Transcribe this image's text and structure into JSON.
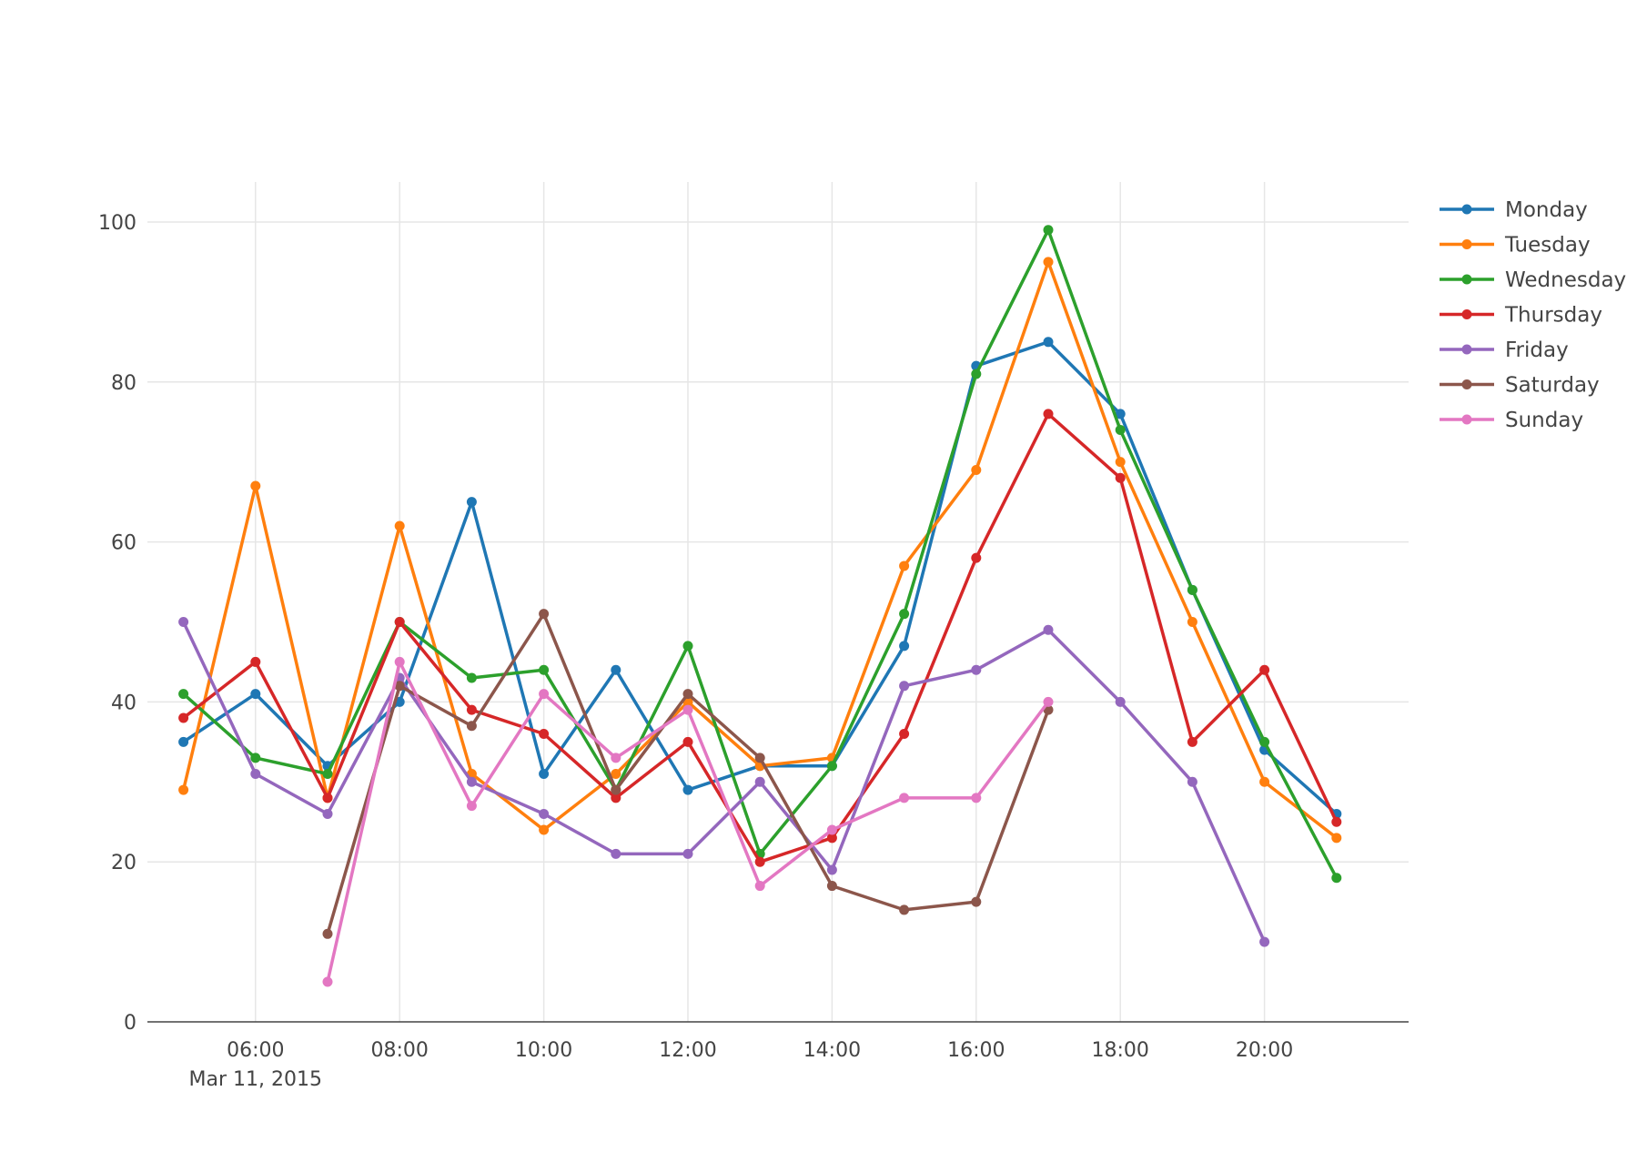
{
  "chart_data": {
    "type": "line",
    "title": "",
    "xlabel": "",
    "ylabel": "",
    "x_axis_type": "time",
    "x_range": [
      "2015-03-11 04:30",
      "2015-03-11 22:00"
    ],
    "x": [
      "05:00",
      "06:00",
      "07:00",
      "08:00",
      "09:00",
      "10:00",
      "11:00",
      "12:00",
      "13:00",
      "14:00",
      "15:00",
      "16:00",
      "17:00",
      "18:00",
      "19:00",
      "20:00",
      "21:00"
    ],
    "x_ticks": [
      "06:00",
      "08:00",
      "10:00",
      "12:00",
      "14:00",
      "16:00",
      "18:00",
      "20:00"
    ],
    "x_tick_positions": [
      "2015-03-11 06:00",
      "2015-03-11 08:00",
      "2015-03-11 10:00",
      "2015-03-11 12:00",
      "2015-03-11 14:00",
      "2015-03-11 16:00",
      "2015-03-11 18:00",
      "2015-03-11 20:00"
    ],
    "x_date_label": "Mar 11, 2015",
    "ylim": [
      0,
      105
    ],
    "y_ticks": [
      0,
      20,
      40,
      60,
      80,
      100
    ],
    "grid": true,
    "legend_position": "top-right",
    "series": [
      {
        "name": "Monday",
        "color": "#1f77b4",
        "values": [
          35,
          41,
          32,
          40,
          65,
          31,
          44,
          29,
          32,
          32,
          47,
          82,
          85,
          76,
          54,
          34,
          26
        ]
      },
      {
        "name": "Tuesday",
        "color": "#ff7f0e",
        "values": [
          29,
          67,
          28,
          62,
          31,
          24,
          31,
          40,
          32,
          33,
          57,
          69,
          95,
          70,
          50,
          30,
          23
        ]
      },
      {
        "name": "Wednesday",
        "color": "#2ca02c",
        "values": [
          41,
          33,
          31,
          50,
          43,
          44,
          29,
          47,
          21,
          32,
          51,
          81,
          99,
          74,
          54,
          35,
          18
        ]
      },
      {
        "name": "Thursday",
        "color": "#d62728",
        "values": [
          38,
          45,
          28,
          50,
          39,
          36,
          28,
          35,
          20,
          23,
          36,
          58,
          76,
          68,
          35,
          44,
          25
        ]
      },
      {
        "name": "Friday",
        "color": "#9467bd",
        "values": [
          50,
          31,
          26,
          43,
          30,
          26,
          21,
          21,
          30,
          19,
          42,
          44,
          49,
          40,
          30,
          10,
          null
        ]
      },
      {
        "name": "Saturday",
        "color": "#8c564b",
        "values": [
          null,
          null,
          11,
          42,
          37,
          51,
          29,
          41,
          33,
          17,
          14,
          15,
          39,
          null,
          null,
          null,
          null
        ]
      },
      {
        "name": "Sunday",
        "color": "#e377c2",
        "values": [
          null,
          null,
          5,
          45,
          27,
          41,
          33,
          39,
          17,
          24,
          28,
          28,
          40,
          null,
          null,
          null,
          null
        ]
      }
    ]
  }
}
